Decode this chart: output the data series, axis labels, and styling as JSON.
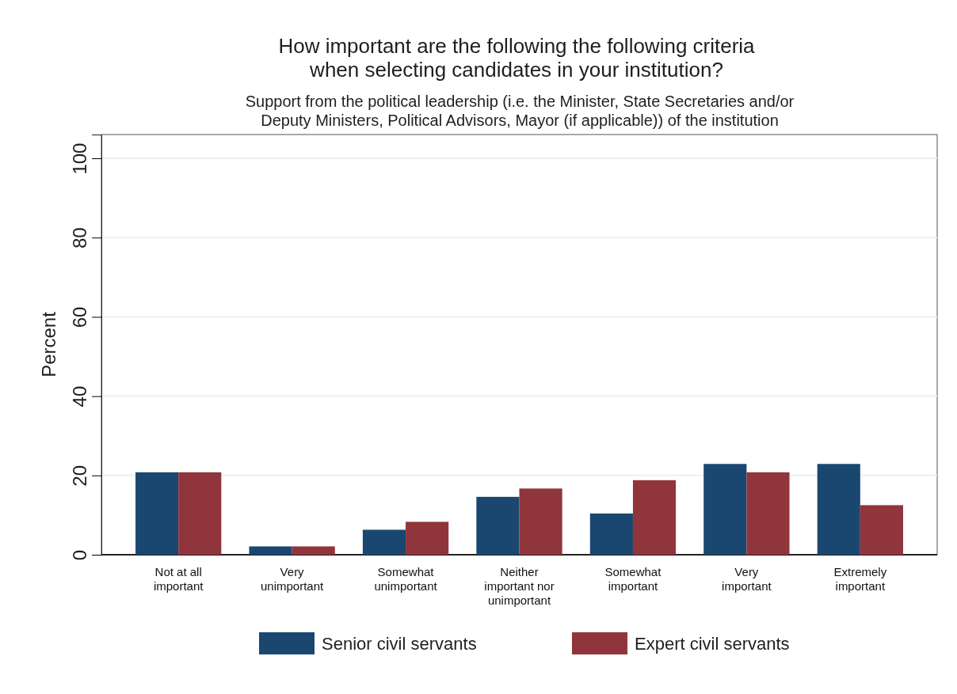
{
  "chart_data": {
    "type": "bar",
    "title": "How important are the following the following criteria\nwhen selecting candidates in your institution?",
    "subtitle": "Support from the political leadership (i.e. the Minister, State Secretaries and/or\nDeputy Ministers, Political Advisors, Mayor (if applicable)) of the institution",
    "ylabel": "Percent",
    "categories": [
      "Not at all\nimportant",
      "Very\nunimportant",
      "Somewhat\nunimportant",
      "Neither\nimportant nor\nunimportant",
      "Somewhat\nimportant",
      "Very\nimportant",
      "Extremely\nimportant"
    ],
    "series": [
      {
        "name": "Senior civil servants",
        "color": "#1a476f",
        "values": [
          20.8,
          2.1,
          6.3,
          14.6,
          10.4,
          22.9,
          22.9
        ]
      },
      {
        "name": "Expert civil servants",
        "color": "#90353b",
        "values": [
          20.8,
          2.1,
          8.3,
          16.7,
          18.8,
          20.8,
          12.5
        ]
      }
    ],
    "ylim": [
      0,
      106
    ],
    "yticks": [
      0,
      20,
      40,
      60,
      80,
      100
    ],
    "grid": "y",
    "legend": "bottom"
  }
}
